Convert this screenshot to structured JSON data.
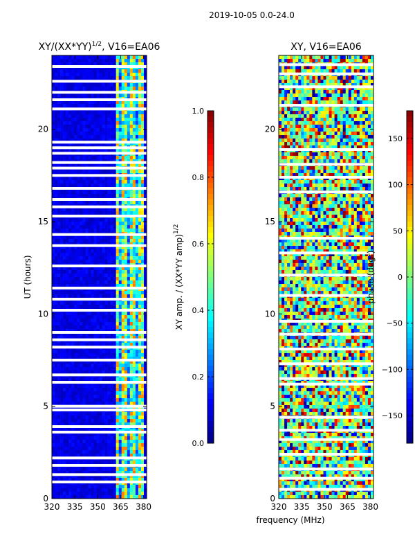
{
  "figure": {
    "suptitle": "2019-10-05 0.0-24.0",
    "shared_xlabel": "frequency (MHz)"
  },
  "chart_data": [
    {
      "type": "heatmap",
      "title_main": "XY/(XX*YY)",
      "title_sup": "1/2",
      "title_tail": ", V16=EA06",
      "xlabel": "",
      "ylabel": "UT (hours)",
      "xlim": [
        320,
        382
      ],
      "ylim": [
        0,
        24
      ],
      "xticks": [
        320,
        335,
        350,
        365,
        380
      ],
      "yticks": [
        0,
        5,
        10,
        15,
        20
      ],
      "colormap": "jet",
      "colorbar": {
        "label_main": "XY amp. / (XX*YY amp)",
        "label_sup": "1/2",
        "range": [
          0.0,
          1.0
        ],
        "ticks": [
          0.0,
          0.2,
          0.4,
          0.6,
          0.8,
          1.0
        ],
        "tick_labels": [
          "0.0",
          "0.2",
          "0.4",
          "0.6",
          "0.8",
          "1.0"
        ]
      },
      "gap_hours": [
        0.9,
        1.3,
        1.8,
        2.2,
        3.6,
        3.9,
        4.8,
        5.0,
        6.3,
        6.7,
        7.5,
        8.2,
        8.6,
        9.0,
        10.2,
        10.8,
        11.4,
        12.6,
        13.7,
        14.3,
        15.3,
        15.8,
        16.2,
        16.8,
        17.5,
        17.9,
        18.2,
        18.7,
        19.0,
        19.3,
        21.1,
        21.6,
        22.0,
        22.6,
        23.4
      ],
      "strong_band_MHz": [
        362,
        381
      ],
      "background_amplitude": 0.1,
      "band_amplitude": 0.55
    },
    {
      "type": "heatmap",
      "title_main": "XY, V16=EA06",
      "xlabel": "",
      "ylabel": "",
      "xlim": [
        320,
        382
      ],
      "ylim": [
        0,
        24
      ],
      "xticks": [
        320,
        335,
        350,
        365,
        380
      ],
      "yticks": [
        0,
        5,
        10,
        15,
        20
      ],
      "colormap": "jet",
      "colorbar": {
        "label_main": "phase (degr)",
        "range": [
          -180,
          180
        ],
        "ticks": [
          -150,
          -100,
          -50,
          0,
          50,
          100,
          150
        ],
        "tick_labels": [
          "−150",
          "−100",
          "−50",
          "0",
          "50",
          "100",
          "150"
        ]
      },
      "gap_hours": [
        0.5,
        1.1,
        1.6,
        2.4,
        3.2,
        3.7,
        4.4,
        6.2,
        6.5,
        7.3,
        8.1,
        8.9,
        9.6,
        11.0,
        12.1,
        13.3,
        14.1,
        16.6,
        17.4,
        18.1,
        18.9,
        21.3,
        22.3,
        23.0,
        23.5
      ],
      "phase_range_deg": [
        -180,
        180
      ]
    }
  ]
}
